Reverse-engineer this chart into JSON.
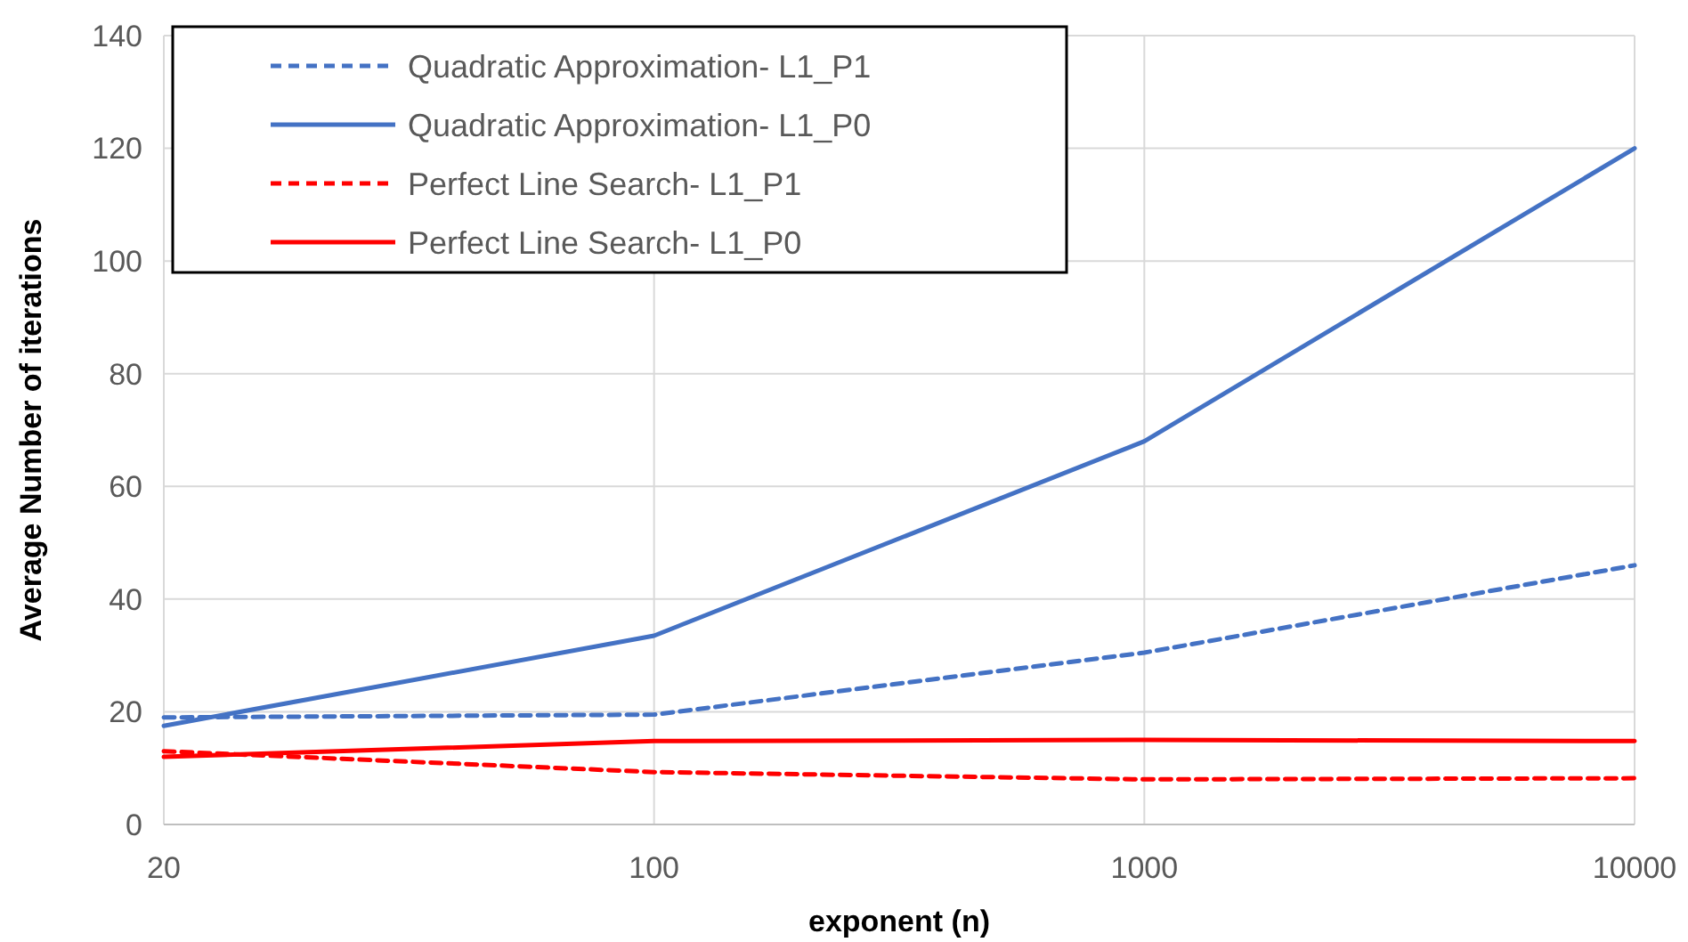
{
  "chart_data": {
    "type": "line",
    "xlabel": "exponent (n)",
    "ylabel": "Average Number of iterations",
    "categories": [
      "20",
      "100",
      "1000",
      "10000"
    ],
    "ylim": [
      0,
      140
    ],
    "yticks": [
      0,
      20,
      40,
      60,
      80,
      100,
      120,
      140
    ],
    "grid": true,
    "legend": "top left",
    "marker": "none",
    "series": [
      {
        "name": "Quadratic Approximation- L1_P1",
        "color": "#4472c4",
        "line_style": "dashed",
        "values": [
          19,
          19.5,
          30.5,
          46
        ]
      },
      {
        "name": "Quadratic Approximation- L1_P0",
        "color": "#4472c4",
        "line_style": "solid",
        "values": [
          17.5,
          33.5,
          68,
          120
        ]
      },
      {
        "name": "Perfect Line Search- L1_P1",
        "color": "#ff0000",
        "line_style": "dashed",
        "values": [
          13,
          9.3,
          8,
          8.2
        ]
      },
      {
        "name": "Perfect Line Search- L1_P0",
        "color": "#ff0000",
        "line_style": "solid",
        "values": [
          12,
          14.8,
          15,
          14.8
        ]
      }
    ]
  }
}
